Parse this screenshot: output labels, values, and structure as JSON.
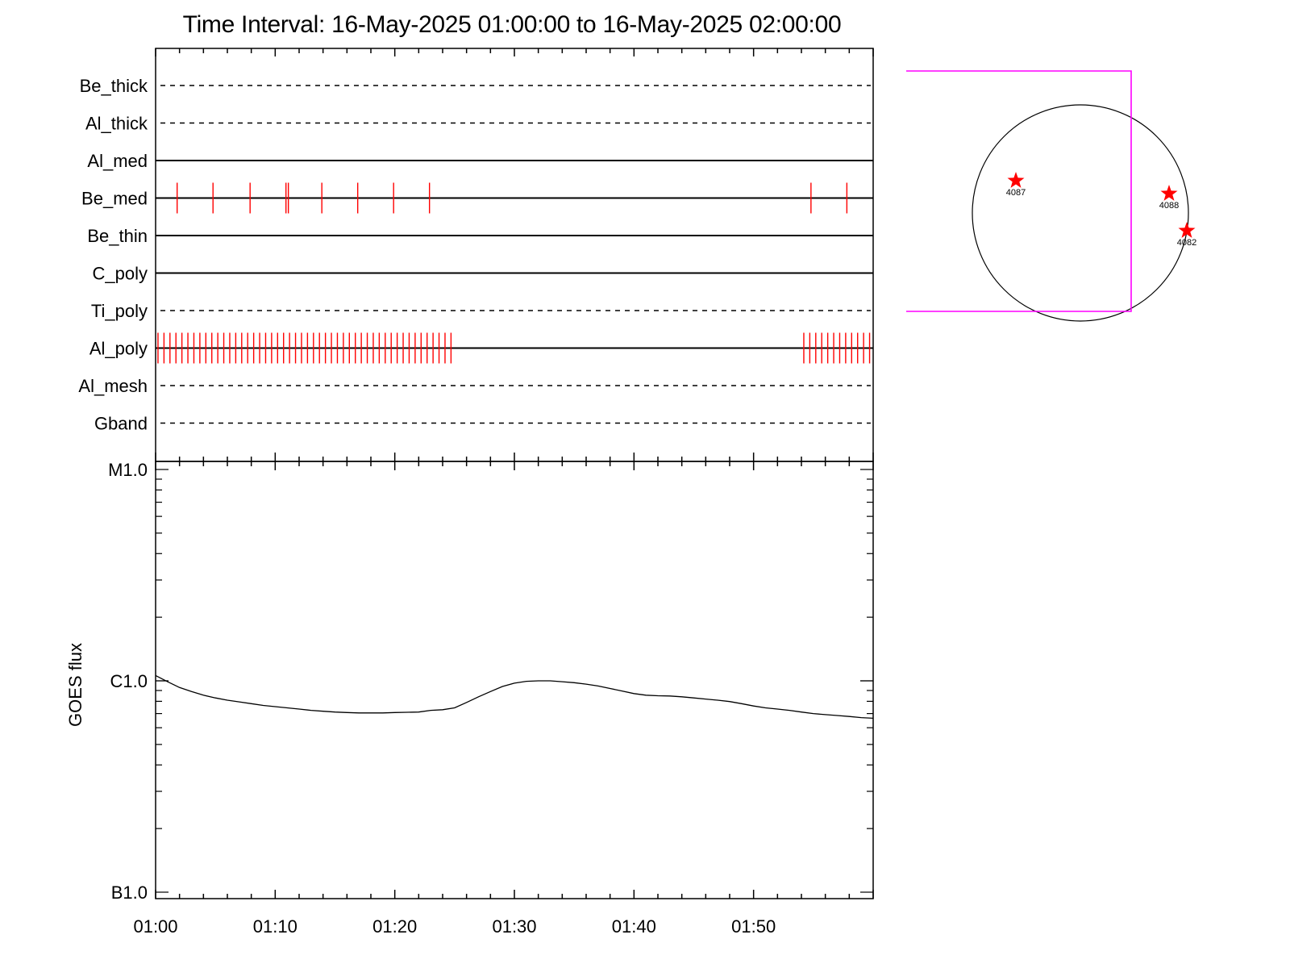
{
  "title": "Time Interval: 16-May-2025 01:00:00 to 16-May-2025 02:00:00",
  "colors": {
    "axis": "#000000",
    "event": "#ff0000",
    "box": "#ff00ff",
    "curve": "#000000"
  },
  "chart_data": [
    {
      "type": "timeline",
      "x_range_minutes": [
        0,
        60
      ],
      "rows": [
        {
          "name": "Be_thick",
          "style": "dashed",
          "events": []
        },
        {
          "name": "Al_thick",
          "style": "dashed",
          "events": []
        },
        {
          "name": "Al_med",
          "style": "solid",
          "events": []
        },
        {
          "name": "Be_med",
          "style": "solid",
          "events": [
            1.8,
            4.8,
            7.9,
            10.9,
            11.1,
            13.9,
            16.9,
            19.9,
            22.9,
            54.8,
            57.8
          ]
        },
        {
          "name": "Be_thin",
          "style": "solid",
          "events": []
        },
        {
          "name": "C_poly",
          "style": "solid",
          "events": []
        },
        {
          "name": "Ti_poly",
          "style": "dashed",
          "events": []
        },
        {
          "name": "Al_poly",
          "style": "solid",
          "events": [
            0.2,
            0.7,
            1.2,
            1.7,
            2.2,
            2.7,
            3.2,
            3.7,
            4.2,
            4.7,
            5.2,
            5.7,
            6.2,
            6.7,
            7.2,
            7.7,
            8.2,
            8.7,
            9.2,
            9.7,
            10.2,
            10.7,
            11.2,
            11.7,
            12.2,
            12.7,
            13.2,
            13.7,
            14.2,
            14.7,
            15.2,
            15.7,
            16.2,
            16.7,
            17.2,
            17.7,
            18.2,
            18.7,
            19.2,
            19.7,
            20.2,
            20.7,
            21.2,
            21.7,
            22.2,
            22.7,
            23.2,
            23.7,
            24.2,
            24.7,
            54.2,
            54.7,
            55.2,
            55.7,
            56.2,
            56.7,
            57.2,
            57.7,
            58.2,
            58.7,
            59.2,
            59.7
          ]
        },
        {
          "name": "Al_mesh",
          "style": "dashed",
          "events": []
        },
        {
          "name": "Gband",
          "style": "dashed",
          "events": []
        }
      ]
    },
    {
      "type": "line",
      "ylabel": "GOES flux",
      "yscale": "log",
      "ylim": [
        1e-07,
        1e-05
      ],
      "ytick_values": [
        1e-07,
        1e-06,
        1e-05
      ],
      "ytick_labels": [
        "B1.0",
        "C1.0",
        "M1.0"
      ],
      "xlim_minutes": [
        0,
        60
      ],
      "xtick_labels": [
        "01:00",
        "01:10",
        "01:20",
        "01:30",
        "01:40",
        "01:50"
      ],
      "series": [
        {
          "x": [
            0,
            1,
            2,
            3,
            4,
            5,
            6,
            7,
            8,
            9,
            10,
            11,
            12,
            13,
            14,
            15,
            16,
            17,
            18,
            19,
            20,
            21,
            22,
            23,
            24,
            25,
            26,
            27,
            28,
            29,
            30,
            31,
            32,
            33,
            34,
            35,
            36,
            37,
            38,
            39,
            40,
            41,
            42,
            43,
            44,
            45,
            46,
            47,
            48,
            49,
            50,
            51,
            52,
            53,
            54,
            55,
            56,
            57,
            58,
            59,
            60
          ],
          "y": [
            1.06e-06,
            9.9e-07,
            9.3e-07,
            8.9e-07,
            8.55e-07,
            8.3e-07,
            8.1e-07,
            7.95e-07,
            7.8e-07,
            7.65e-07,
            7.55e-07,
            7.45e-07,
            7.35e-07,
            7.25e-07,
            7.18e-07,
            7.12e-07,
            7.08e-07,
            7.05e-07,
            7.05e-07,
            7.05e-07,
            7.08e-07,
            7.1e-07,
            7.12e-07,
            7.25e-07,
            7.3e-07,
            7.45e-07,
            7.9e-07,
            8.4e-07,
            8.9e-07,
            9.4e-07,
            9.75e-07,
            9.95e-07,
            1e-06,
            1e-06,
            9.9e-07,
            9.8e-07,
            9.65e-07,
            9.45e-07,
            9.2e-07,
            8.95e-07,
            8.7e-07,
            8.55e-07,
            8.5e-07,
            8.48e-07,
            8.4e-07,
            8.3e-07,
            8.2e-07,
            8.1e-07,
            7.98e-07,
            7.8e-07,
            7.6e-07,
            7.45e-07,
            7.35e-07,
            7.25e-07,
            7.12e-07,
            7e-07,
            6.92e-07,
            6.85e-07,
            6.78e-07,
            6.7e-07,
            6.65e-07
          ]
        }
      ]
    },
    {
      "type": "scatter",
      "points": [
        {
          "label": "4087"
        },
        {
          "label": "4088"
        },
        {
          "label": "4082"
        }
      ]
    }
  ]
}
